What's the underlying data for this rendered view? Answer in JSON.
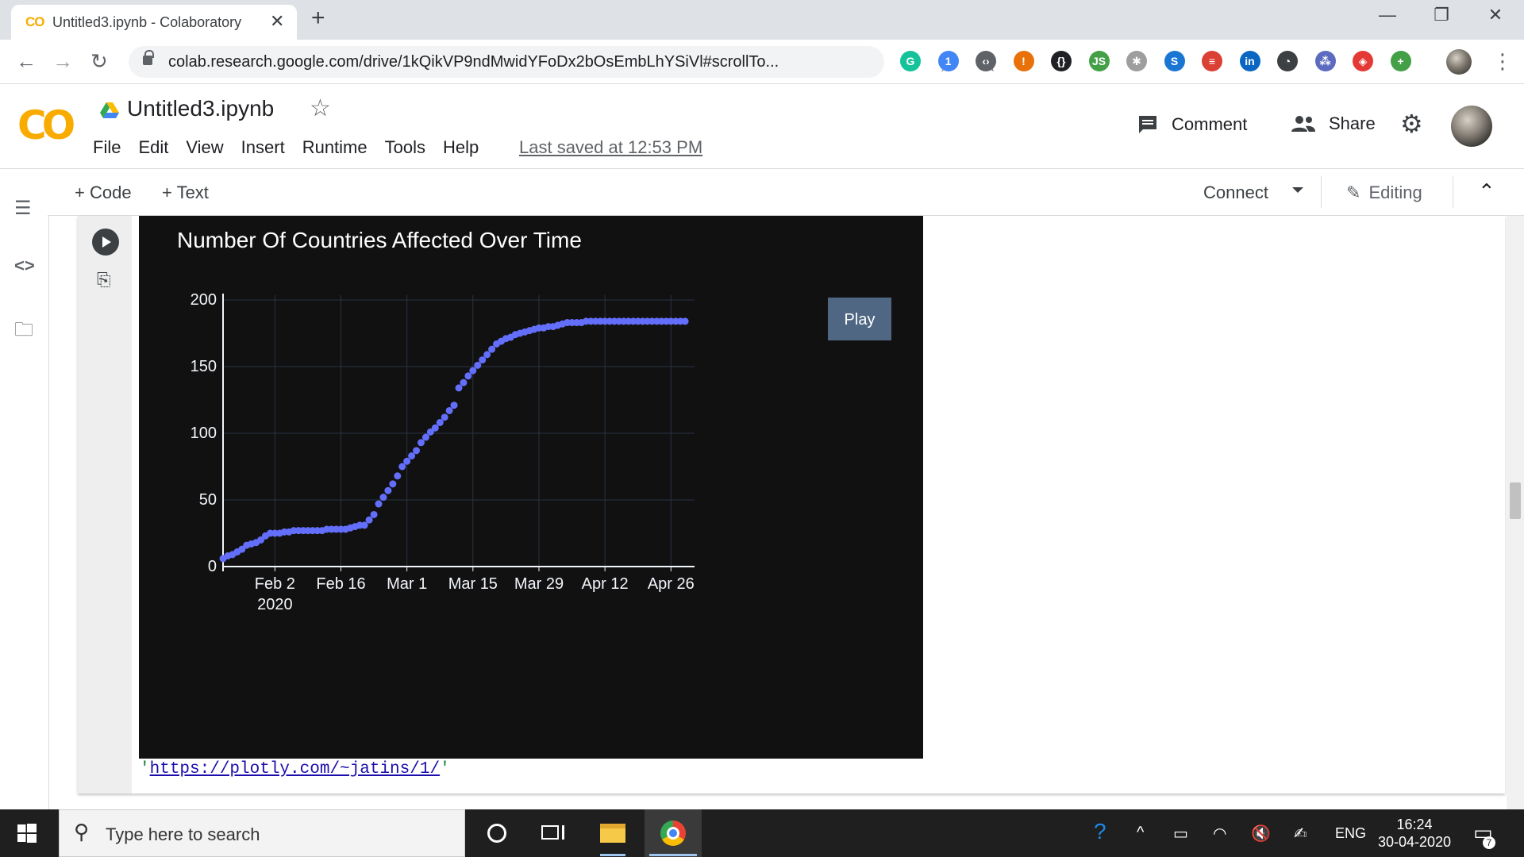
{
  "browser": {
    "tab_title": "Untitled3.ipynb - Colaboratory",
    "tab_icon_text": "CO",
    "close_tab_glyph": "✕",
    "new_tab_glyph": "+",
    "url": "colab.research.google.com/drive/1kQikVP9ndMwidYFoDx2bOsEmbLhYSiVl#scrollTo...",
    "nav": {
      "back": "←",
      "forward": "→",
      "reload": "↻"
    },
    "window_controls": {
      "minimize": "—",
      "restore": "❐",
      "close": "✕"
    },
    "extensions": [
      {
        "name": "grammarly-icon",
        "color": "#15c39a",
        "glyph": "G"
      },
      {
        "name": "extension-badge-icon",
        "color": "#4285f4",
        "glyph": "1"
      },
      {
        "name": "code-ext-icon",
        "color": "#5f6368",
        "glyph": "‹›"
      },
      {
        "name": "alert-ext-icon",
        "color": "#e8710a",
        "glyph": "!"
      },
      {
        "name": "json-ext-icon",
        "color": "#202124",
        "glyph": "{}"
      },
      {
        "name": "node-ext-icon",
        "color": "#43a047",
        "glyph": "JS"
      },
      {
        "name": "settings-ext-icon",
        "color": "#9e9e9e",
        "glyph": "✱"
      },
      {
        "name": "skype-ext-icon",
        "color": "#1976d2",
        "glyph": "S"
      },
      {
        "name": "todoist-ext-icon",
        "color": "#db4035",
        "glyph": "≡"
      },
      {
        "name": "linkedin-ext-icon",
        "color": "#0a66c2",
        "glyph": "in"
      },
      {
        "name": "speed-ext-icon",
        "color": "#3c4043",
        "glyph": "◔"
      },
      {
        "name": "grid-ext-icon",
        "color": "#5c6bc0",
        "glyph": "⁂"
      },
      {
        "name": "shield-ext-icon",
        "color": "#e53935",
        "glyph": "◈"
      },
      {
        "name": "plus-ext-icon",
        "color": "#43a047",
        "glyph": "+"
      }
    ],
    "menu_glyph": "⋮"
  },
  "colab": {
    "logo": "CO",
    "title": "Untitled3.ipynb",
    "star_glyph": "☆",
    "menu": [
      "File",
      "Edit",
      "View",
      "Insert",
      "Runtime",
      "Tools",
      "Help"
    ],
    "last_saved": "Last saved at 12:53 PM",
    "comment": "Comment",
    "share": "Share",
    "toolbar": {
      "add_code": "+ Code",
      "add_text": "+ Text",
      "connect": "Connect",
      "editing": "Editing",
      "collapse_glyph": "⌃"
    },
    "rail": {
      "toc": "☰",
      "code": "<>",
      "files": "🗀"
    }
  },
  "cell": {
    "output_link_prefix": "'",
    "output_link": "https://plotly.com/~jatins/1/",
    "output_link_suffix": "'"
  },
  "chart_data": {
    "type": "scatter",
    "title": "Number Of Countries Affected Over Time",
    "play_button": "Play",
    "x_start": "2020-01-22",
    "x_tick_labels": [
      "Feb 2",
      "Feb 16",
      "Mar 1",
      "Mar 15",
      "Mar 29",
      "Apr 12",
      "Apr 26"
    ],
    "x_tick_year": "2020",
    "y_tick_labels": [
      "0",
      "50",
      "100",
      "150",
      "200"
    ],
    "ylim": [
      0,
      200
    ],
    "marker_color": "#636efa",
    "values": [
      6,
      8,
      9,
      11,
      13,
      16,
      17,
      18,
      20,
      23,
      25,
      25,
      25,
      26,
      26,
      27,
      27,
      27,
      27,
      27,
      27,
      27,
      28,
      28,
      28,
      28,
      28,
      29,
      30,
      31,
      31,
      35,
      39,
      47,
      52,
      57,
      62,
      68,
      75,
      79,
      83,
      87,
      93,
      97,
      101,
      104,
      108,
      112,
      117,
      121,
      134,
      138,
      143,
      147,
      151,
      155,
      159,
      163,
      167,
      169,
      171,
      172,
      174,
      175,
      176,
      177,
      178,
      179,
      179,
      180,
      180,
      181,
      182,
      183,
      183,
      183,
      183,
      184,
      184,
      184,
      184,
      184,
      184,
      184,
      184,
      184,
      184,
      184,
      184,
      184,
      184,
      184,
      184,
      184,
      184,
      184,
      184,
      184,
      184
    ]
  },
  "taskbar": {
    "search_placeholder": "Type here to search",
    "lang": "ENG",
    "time": "16:24",
    "date": "30-04-2020",
    "notif_count": "7"
  }
}
